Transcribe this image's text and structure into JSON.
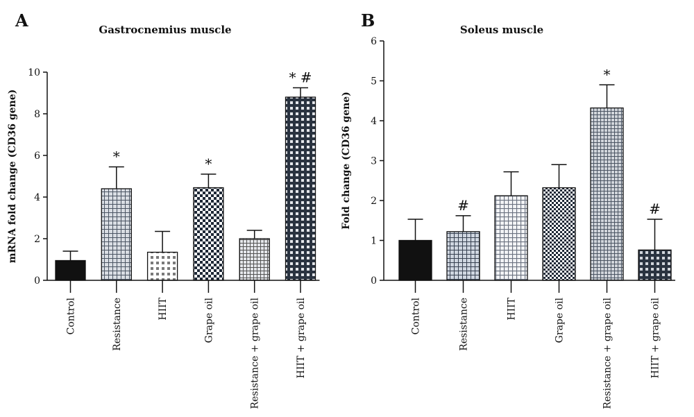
{
  "chart_data": [
    {
      "type": "bar",
      "panel": "A",
      "title": "Gastrocnemius muscle",
      "xlabel": "",
      "ylabel": "mRNA fold change (CD36 gene)",
      "ylim": [
        0,
        10
      ],
      "yticks": [
        "0",
        "2",
        "4",
        "6",
        "8",
        "10"
      ],
      "categories": [
        "Control",
        "Resistance",
        "HIIT",
        "Grape oil",
        "Resistance + grape oil",
        "HIIT + grape oil"
      ],
      "values": [
        0.95,
        4.4,
        1.35,
        4.45,
        2.0,
        8.8
      ],
      "errors": [
        0.45,
        1.05,
        1.0,
        0.65,
        0.4,
        0.45
      ],
      "annotations": [
        "",
        "*",
        "",
        "*",
        "",
        "* #"
      ],
      "grid": false,
      "legend": "none"
    },
    {
      "type": "bar",
      "panel": "B",
      "title": "Soleus muscle",
      "xlabel": "",
      "ylabel": "Fold change (CD36 gene)",
      "ylim": [
        0,
        6
      ],
      "yticks": [
        "0",
        "1",
        "2",
        "3",
        "4",
        "5",
        "6"
      ],
      "categories": [
        "Control",
        "Resistance",
        "HIIT",
        "Grape oil",
        "Resistance + grape oil",
        "HIIT + grape oil"
      ],
      "values": [
        1.0,
        1.22,
        2.12,
        2.32,
        4.32,
        0.76
      ],
      "errors": [
        0.53,
        0.4,
        0.6,
        0.58,
        0.58,
        0.77
      ],
      "annotations": [
        "",
        "#",
        "",
        "",
        "*",
        "#"
      ],
      "grid": false,
      "legend": "none"
    }
  ]
}
